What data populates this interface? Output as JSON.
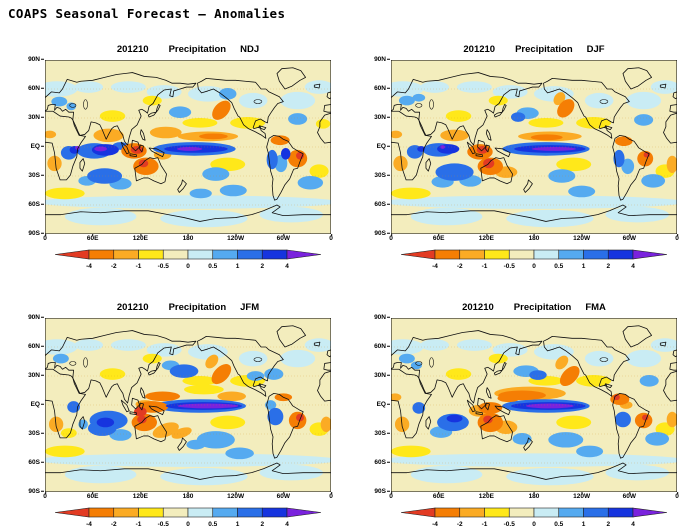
{
  "page": {
    "title": "COAPS Seasonal Forecast — Anomalies"
  },
  "axes": {
    "lat_ticks": [
      "90N",
      "60N",
      "30N",
      "EQ",
      "30S",
      "60S",
      "90S"
    ],
    "lon_ticks": [
      "0",
      "60E",
      "120E",
      "180",
      "120W",
      "60W",
      "0"
    ]
  },
  "colorbar": {
    "tick_labels": [
      "-4",
      "-2",
      "-1",
      "-0.5",
      "0",
      "0.5",
      "1",
      "2",
      "4"
    ],
    "values": [
      -4,
      -2,
      -1,
      -0.5,
      0,
      0.5,
      1,
      2,
      4
    ],
    "arrow_left_color": "#e23b23",
    "arrow_right_color": "#7a22dd",
    "segment_colors": [
      "#f57e04",
      "#fbab24",
      "#ffe81a",
      "#f3edbd",
      "#c9ecf4",
      "#55aaf0",
      "#2a6fe8",
      "#1634df"
    ]
  },
  "chart_data": {
    "type": "heatmap",
    "title": "COAPS Seasonal Forecast — Anomalies",
    "variable": "Precipitation",
    "init_date": "201210",
    "lon_range": [
      0,
      360
    ],
    "lat_range": [
      -90,
      90
    ],
    "scale_values": [
      -4,
      -2,
      -1,
      -0.5,
      0,
      0.5,
      1,
      2,
      4
    ],
    "level_colors": {
      "base": "#f3edbd",
      "c": "#c9ecf4",
      "b": "#55aaf0",
      "B": "#2a6fe8",
      "D": "#1634df",
      "P": "#7a22dd",
      "y": "#ffe81a",
      "o": "#fbab24",
      "O": "#f57e04",
      "r": "#e23b23"
    },
    "level_meaning": {
      "base": "-0.5 to 0",
      "c": "0 to 0.5",
      "b": "0.5 to 1",
      "B": "1 to 2",
      "D": "2 to 4",
      "P": "> 4",
      "y": "-1 to -0.5",
      "o": "-2 to -1",
      "O": "-4 to -2",
      "r": "< -4"
    },
    "texture_patches": [
      [
        15,
        60,
        26,
        8,
        "c"
      ],
      [
        55,
        62,
        18,
        6,
        "c"
      ],
      [
        105,
        62,
        22,
        6,
        "c"
      ],
      [
        150,
        57,
        22,
        7,
        "c"
      ],
      [
        205,
        55,
        25,
        8,
        "c"
      ],
      [
        262,
        48,
        18,
        8,
        "c"
      ],
      [
        318,
        48,
        22,
        9,
        "c"
      ],
      [
        345,
        62,
        18,
        7,
        "c"
      ],
      [
        180,
        -57,
        190,
        7,
        "c"
      ],
      [
        70,
        -72,
        45,
        9,
        "c"
      ],
      [
        200,
        -74,
        55,
        9,
        "c"
      ],
      [
        310,
        -70,
        40,
        8,
        "c"
      ],
      [
        255,
        25,
        22,
        6,
        "y"
      ],
      [
        195,
        25,
        22,
        5,
        "y"
      ],
      [
        85,
        32,
        16,
        6,
        "y"
      ],
      [
        25,
        -48,
        25,
        6,
        "y"
      ],
      [
        230,
        -18,
        22,
        7,
        "y"
      ],
      [
        345,
        -25,
        12,
        7,
        "y"
      ],
      [
        135,
        48,
        12,
        5,
        "y"
      ]
    ],
    "panels": [
      {
        "date": "201210",
        "variable": "Precipitation",
        "season": "NDJ",
        "anomalies": [
          [
            30,
            -6,
            10,
            7,
            "B"
          ],
          [
            37,
            -3,
            6,
            4,
            "D"
          ],
          [
            41,
            -1,
            3,
            2,
            "P"
          ],
          [
            62,
            -4,
            22,
            8,
            "B"
          ],
          [
            76,
            -3,
            17,
            6,
            "D"
          ],
          [
            70,
            -2,
            8,
            2.5,
            "P"
          ],
          [
            95,
            1,
            10,
            4,
            "B"
          ],
          [
            188,
            -2,
            52,
            7,
            "B"
          ],
          [
            190,
            -2,
            40,
            4,
            "D"
          ],
          [
            182,
            -2,
            16,
            2,
            "P"
          ],
          [
            170,
            36,
            14,
            6,
            "b"
          ],
          [
            230,
            55,
            11,
            6,
            "b"
          ],
          [
            18,
            47,
            10,
            5,
            "b"
          ],
          [
            33,
            42,
            6,
            4,
            "b"
          ],
          [
            75,
            -30,
            22,
            8,
            "B"
          ],
          [
            95,
            -38,
            14,
            6,
            "b"
          ],
          [
            53,
            -35,
            11,
            5,
            "b"
          ],
          [
            215,
            -28,
            17,
            7,
            "b"
          ],
          [
            237,
            -45,
            17,
            6,
            "b"
          ],
          [
            196,
            -48,
            14,
            5,
            "b"
          ],
          [
            286,
            -13,
            7,
            10,
            "B"
          ],
          [
            297,
            -17,
            8,
            9,
            "b"
          ],
          [
            303,
            -7,
            6,
            6,
            "D"
          ],
          [
            334,
            -37,
            16,
            7,
            "b"
          ],
          [
            318,
            29,
            12,
            6,
            "b"
          ],
          [
            80,
            12,
            19,
            7,
            "o"
          ],
          [
            112,
            -4,
            16,
            8,
            "O"
          ],
          [
            116,
            -3,
            8,
            4,
            "r"
          ],
          [
            127,
            -20,
            16,
            9,
            "O"
          ],
          [
            124,
            -17,
            6,
            4,
            "r"
          ],
          [
            148,
            -8,
            11,
            5,
            "o"
          ],
          [
            152,
            15,
            20,
            6,
            "o"
          ],
          [
            205,
            11,
            38,
            5,
            "o"
          ],
          [
            212,
            11,
            18,
            3,
            "O"
          ],
          [
            222,
            38,
            13,
            8,
            "O",
            -35
          ],
          [
            296,
            7,
            12,
            5,
            "O"
          ],
          [
            318,
            -12,
            12,
            9,
            "O"
          ],
          [
            321,
            -9,
            5,
            4,
            "r"
          ],
          [
            12,
            -17,
            9,
            8,
            "o"
          ],
          [
            6,
            13,
            8,
            4,
            "o"
          ],
          [
            350,
            24,
            9,
            5,
            "y"
          ]
        ]
      },
      {
        "date": "201210",
        "variable": "Precipitation",
        "season": "DJF",
        "anomalies": [
          [
            30,
            -5,
            10,
            7,
            "B"
          ],
          [
            38,
            -2,
            5,
            3,
            "D"
          ],
          [
            65,
            0,
            3,
            2,
            "P"
          ],
          [
            60,
            -3,
            20,
            7,
            "B"
          ],
          [
            72,
            -2,
            14,
            5,
            "D"
          ],
          [
            195,
            -2,
            55,
            7,
            "B"
          ],
          [
            200,
            -2,
            45,
            4,
            "D"
          ],
          [
            205,
            -2,
            28,
            2,
            "P"
          ],
          [
            172,
            35,
            14,
            6,
            "b"
          ],
          [
            160,
            31,
            9,
            5,
            "B"
          ],
          [
            20,
            48,
            10,
            5,
            "b"
          ],
          [
            35,
            51,
            8,
            4,
            "b"
          ],
          [
            80,
            -26,
            24,
            9,
            "B"
          ],
          [
            65,
            -36,
            14,
            6,
            "b"
          ],
          [
            100,
            -35,
            14,
            6,
            "b"
          ],
          [
            215,
            -30,
            17,
            7,
            "b"
          ],
          [
            240,
            -46,
            17,
            6,
            "b"
          ],
          [
            287,
            -12,
            7,
            9,
            "B"
          ],
          [
            298,
            -20,
            8,
            8,
            "b"
          ],
          [
            330,
            -35,
            15,
            7,
            "b"
          ],
          [
            318,
            28,
            12,
            6,
            "b"
          ],
          [
            80,
            12,
            18,
            6,
            "o"
          ],
          [
            112,
            -5,
            16,
            8,
            "O"
          ],
          [
            115,
            -3,
            7,
            4,
            "r"
          ],
          [
            125,
            -20,
            16,
            9,
            "O"
          ],
          [
            123,
            -17,
            7,
            5,
            "r"
          ],
          [
            145,
            -26,
            14,
            6,
            "o"
          ],
          [
            200,
            11,
            40,
            5,
            "o"
          ],
          [
            196,
            10,
            20,
            3,
            "O"
          ],
          [
            220,
            40,
            12,
            8,
            "O",
            -35
          ],
          [
            212,
            50,
            8,
            6,
            "o",
            -35
          ],
          [
            293,
            6,
            11,
            5,
            "O"
          ],
          [
            320,
            -12,
            10,
            8,
            "O"
          ],
          [
            322,
            -8,
            4,
            3,
            "r"
          ],
          [
            354,
            -18,
            7,
            9,
            "o"
          ],
          [
            12,
            -17,
            9,
            8,
            "o"
          ],
          [
            6,
            13,
            8,
            4,
            "o"
          ]
        ]
      },
      {
        "date": "201210",
        "variable": "Precipitation",
        "season": "JFM",
        "anomalies": [
          [
            195,
            -1,
            58,
            7,
            "B"
          ],
          [
            200,
            -1,
            48,
            4,
            "D"
          ],
          [
            205,
            -1,
            38,
            2.5,
            "P"
          ],
          [
            135,
            -2,
            20,
            6,
            "O"
          ],
          [
            126,
            1,
            12,
            4,
            "o"
          ],
          [
            120,
            -7,
            8,
            5,
            "r"
          ],
          [
            148,
            9,
            22,
            5,
            "O"
          ],
          [
            235,
            9,
            18,
            5,
            "o"
          ],
          [
            200,
            16,
            25,
            5,
            "y"
          ],
          [
            125,
            -18,
            16,
            9,
            "O"
          ],
          [
            122,
            -15,
            6,
            4,
            "r"
          ],
          [
            152,
            -26,
            17,
            7,
            "o",
            -15
          ],
          [
            172,
            -29,
            13,
            5,
            "o",
            -15
          ],
          [
            80,
            -16,
            24,
            10,
            "B"
          ],
          [
            72,
            -24,
            18,
            8,
            "B"
          ],
          [
            95,
            -31,
            14,
            6,
            "b"
          ],
          [
            76,
            -18,
            11,
            5,
            "D"
          ],
          [
            36,
            -2,
            8,
            6,
            "B"
          ],
          [
            48,
            -20,
            6,
            5,
            "b"
          ],
          [
            14,
            -20,
            9,
            8,
            "o"
          ],
          [
            30,
            -29,
            10,
            5,
            "y"
          ],
          [
            175,
            35,
            18,
            7,
            "B"
          ],
          [
            158,
            41,
            11,
            5,
            "b"
          ],
          [
            222,
            32,
            14,
            8,
            "O",
            -35
          ],
          [
            210,
            45,
            9,
            6,
            "o",
            -35
          ],
          [
            265,
            30,
            11,
            5,
            "b"
          ],
          [
            288,
            32,
            12,
            6,
            "b"
          ],
          [
            290,
            -12,
            10,
            9,
            "B"
          ],
          [
            284,
            0,
            7,
            5,
            "b"
          ],
          [
            300,
            8,
            11,
            4,
            "O"
          ],
          [
            318,
            -16,
            11,
            9,
            "O"
          ],
          [
            321,
            -13,
            5,
            4,
            "r"
          ],
          [
            354,
            -20,
            7,
            8,
            "o"
          ],
          [
            215,
            -36,
            24,
            9,
            "b"
          ],
          [
            245,
            -50,
            18,
            6,
            "b"
          ],
          [
            190,
            -41,
            12,
            5,
            "b"
          ],
          [
            20,
            48,
            10,
            5,
            "b"
          ]
        ]
      },
      {
        "date": "201210",
        "variable": "Precipitation",
        "season": "FMA",
        "anomalies": [
          [
            195,
            -1,
            55,
            7,
            "B"
          ],
          [
            198,
            -1,
            47,
            4,
            "D"
          ],
          [
            200,
            -1,
            30,
            2.5,
            "P"
          ],
          [
            175,
            12,
            45,
            7,
            "o"
          ],
          [
            165,
            10,
            30,
            5,
            "O"
          ],
          [
            148,
            7,
            14,
            4,
            "O"
          ],
          [
            225,
            30,
            14,
            8,
            "O",
            -35
          ],
          [
            215,
            44,
            9,
            6,
            "o",
            -35
          ],
          [
            125,
            -3,
            15,
            6,
            "O"
          ],
          [
            110,
            -6,
            12,
            6,
            "o"
          ],
          [
            125,
            -18,
            16,
            10,
            "O"
          ],
          [
            122,
            -15,
            6,
            4,
            "r"
          ],
          [
            145,
            -23,
            14,
            7,
            "o"
          ],
          [
            78,
            -18,
            20,
            9,
            "B"
          ],
          [
            63,
            -28,
            14,
            6,
            "b"
          ],
          [
            80,
            -14,
            10,
            4,
            "D"
          ],
          [
            35,
            -3,
            8,
            6,
            "B"
          ],
          [
            14,
            -20,
            9,
            8,
            "o"
          ],
          [
            5,
            8,
            8,
            4,
            "o"
          ],
          [
            170,
            35,
            16,
            6,
            "b"
          ],
          [
            185,
            31,
            11,
            5,
            "B"
          ],
          [
            288,
            6,
            12,
            6,
            "O"
          ],
          [
            284,
            8,
            4,
            3,
            "r"
          ],
          [
            296,
            0,
            8,
            4,
            "o"
          ],
          [
            292,
            -15,
            10,
            8,
            "B"
          ],
          [
            318,
            -16,
            11,
            8,
            "O"
          ],
          [
            320,
            -13,
            4,
            3,
            "r"
          ],
          [
            354,
            -15,
            7,
            8,
            "o"
          ],
          [
            220,
            -36,
            22,
            8,
            "b"
          ],
          [
            250,
            -48,
            17,
            6,
            "b"
          ],
          [
            165,
            -35,
            12,
            6,
            "b"
          ],
          [
            325,
            25,
            12,
            6,
            "b"
          ],
          [
            335,
            -35,
            15,
            7,
            "b"
          ],
          [
            20,
            48,
            10,
            5,
            "b"
          ],
          [
            32,
            41,
            7,
            4,
            "b"
          ]
        ]
      }
    ]
  }
}
